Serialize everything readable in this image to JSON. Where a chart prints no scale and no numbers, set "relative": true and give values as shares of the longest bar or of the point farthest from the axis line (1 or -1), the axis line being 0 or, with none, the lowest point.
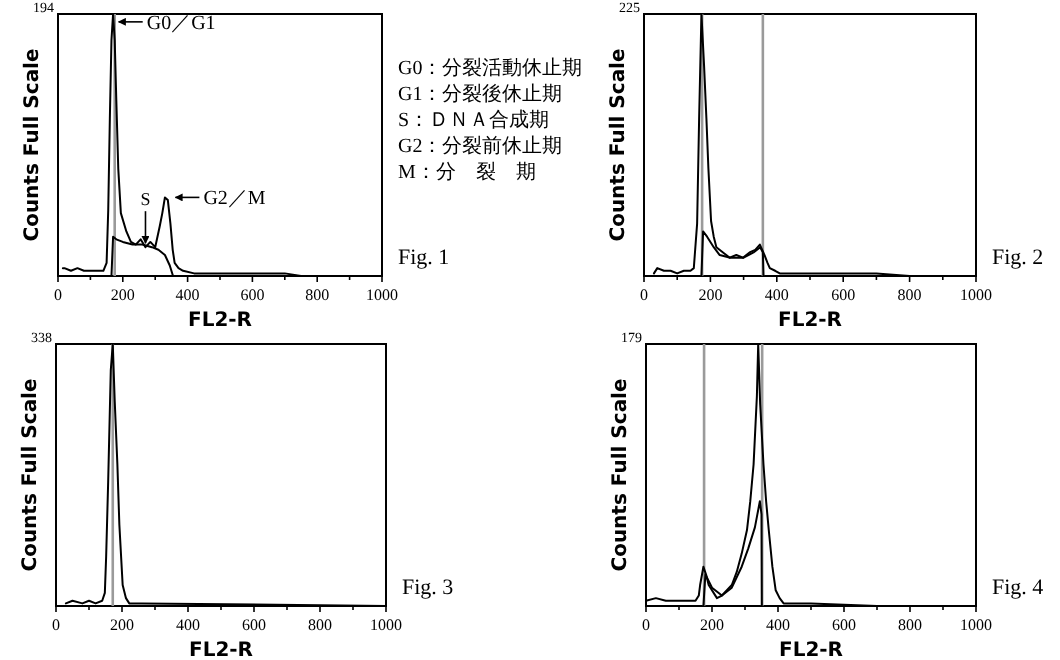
{
  "chart_data": [
    {
      "type": "line",
      "relative": true,
      "xlabel": "FL2-R",
      "ylabel": "Counts Full Scale",
      "xlim": [
        0,
        1000
      ],
      "xticks": [
        0,
        {
          "value": 100,
          "label": null
        },
        200,
        {
          "value": 300,
          "label": null
        },
        400,
        {
          "value": 500,
          "label": null
        },
        600,
        {
          "value": 700,
          "label": null
        },
        800,
        {
          "value": 900,
          "label": null
        },
        1000
      ],
      "series": [
        {
          "color": "#000000",
          "x": [
            15,
            20,
            40,
            60,
            80,
            100,
            120,
            140,
            150,
            155,
            160,
            165,
            170,
            175,
            180,
            186,
            194,
            211,
            225,
            240,
            255,
            270,
            285,
            300,
            314,
            322,
            330,
            339,
            347,
            354,
            360,
            372,
            386,
            420,
            500,
            600,
            700,
            750,
            800,
            900,
            1000
          ],
          "values": [
            0.03,
            0.03,
            0.02,
            0.03,
            0.02,
            0.02,
            0.02,
            0.02,
            0.05,
            0.25,
            0.6,
            0.9,
            1.0,
            0.9,
            0.67,
            0.41,
            0.24,
            0.17,
            0.13,
            0.12,
            0.14,
            0.11,
            0.13,
            0.11,
            0.19,
            0.24,
            0.3,
            0.29,
            0.2,
            0.1,
            0.05,
            0.03,
            0.02,
            0.01,
            0.01,
            0.01,
            0.01,
            0,
            0,
            0,
            0
          ]
        },
        {
          "color": "#000000",
          "x": [
            165,
            170,
            180,
            200,
            230,
            260,
            290,
            310,
            330,
            345,
            355
          ],
          "values": [
            0,
            0.15,
            0.14,
            0.13,
            0.12,
            0.12,
            0.11,
            0.1,
            0.08,
            0.04,
            0
          ]
        }
      ],
      "ref_lines": [
        {
          "axis": "x",
          "value": 175,
          "label": null,
          "color": "#9a9a9a"
        }
      ],
      "annotations": [
        "194",
        {
          "text": "G0／G1",
          "x": 175,
          "y": 0.97
        },
        {
          "text": "S",
          "x": 270,
          "y": 0.11
        },
        {
          "text": "G2／M",
          "x": 350,
          "y": 0.3
        },
        "G0：分裂活動休止期",
        "G1：分裂後休止期",
        "S：ＤＮＡ合成期",
        "G2：分裂前休止期",
        "M：分　裂　期",
        "Fig. 1"
      ]
    },
    {
      "type": "line",
      "relative": true,
      "xlabel": "FL2-R",
      "ylabel": "Counts Full Scale",
      "xlim": [
        0,
        1000
      ],
      "xticks": [
        0,
        {
          "value": 100,
          "label": null
        },
        200,
        {
          "value": 300,
          "label": null
        },
        400,
        {
          "value": 500,
          "label": null
        },
        600,
        {
          "value": 700,
          "label": null
        },
        800,
        {
          "value": 900,
          "label": null
        },
        1000
      ],
      "series": [
        {
          "color": "#000000",
          "x": [
            30,
            40,
            60,
            80,
            100,
            120,
            140,
            150,
            160,
            166,
            173,
            181,
            188,
            194,
            202,
            210,
            218,
            238,
            258,
            278,
            298,
            318,
            335,
            349,
            356,
            363,
            372,
            379,
            395,
            409,
            450,
            500,
            600,
            700,
            800,
            1000
          ],
          "values": [
            0.01,
            0.03,
            0.02,
            0.02,
            0.01,
            0.02,
            0.02,
            0.03,
            0.2,
            0.6,
            1.0,
            0.8,
            0.6,
            0.41,
            0.21,
            0.15,
            0.11,
            0.09,
            0.07,
            0.08,
            0.07,
            0.09,
            0.1,
            0.12,
            0.1,
            0.08,
            0.05,
            0.03,
            0.02,
            0.01,
            0.01,
            0.01,
            0.01,
            0.01,
            0,
            0
          ]
        },
        {
          "color": "#000000",
          "x": [
            173,
            178,
            190,
            210,
            228,
            260,
            300,
            330,
            350,
            358,
            360
          ],
          "values": [
            0,
            0.17,
            0.15,
            0.11,
            0.08,
            0.07,
            0.07,
            0.09,
            0.11,
            0.09,
            0
          ]
        }
      ],
      "ref_lines": [
        {
          "axis": "x",
          "value": 175,
          "label": null,
          "color": "#9a9a9a"
        },
        {
          "axis": "x",
          "value": 358,
          "label": null,
          "color": "#9a9a9a"
        }
      ],
      "annotations": [
        "225",
        "Fig. 2"
      ]
    },
    {
      "type": "line",
      "relative": true,
      "xlabel": "FL2-R",
      "ylabel": "Counts Full Scale",
      "xlim": [
        0,
        1000
      ],
      "xticks": [
        0,
        {
          "value": 100,
          "label": null
        },
        200,
        {
          "value": 300,
          "label": null
        },
        400,
        {
          "value": 500,
          "label": null
        },
        600,
        {
          "value": 700,
          "label": null
        },
        800,
        {
          "value": 900,
          "label": null
        },
        1000
      ],
      "series": [
        {
          "color": "#000000",
          "x": [
            30,
            50,
            80,
            100,
            120,
            140,
            148,
            152,
            158,
            166,
            172,
            178,
            186,
            192,
            202,
            212,
            222,
            260,
            1000
          ],
          "values": [
            0.01,
            0.02,
            0.01,
            0.02,
            0.01,
            0.02,
            0.05,
            0.19,
            0.47,
            0.9,
            1.0,
            0.78,
            0.54,
            0.31,
            0.08,
            0.03,
            0.01,
            0.01,
            0
          ]
        }
      ],
      "ref_lines": [
        {
          "axis": "x",
          "value": 172,
          "label": null,
          "color": "#9a9a9a"
        }
      ],
      "annotations": [
        "338",
        "Fig. 3"
      ]
    },
    {
      "type": "line",
      "relative": true,
      "xlabel": "FL2-R",
      "ylabel": "Counts Full Scale",
      "xlim": [
        0,
        1000
      ],
      "xticks": [
        0,
        {
          "value": 100,
          "label": null
        },
        200,
        {
          "value": 300,
          "label": null
        },
        400,
        {
          "value": 500,
          "label": null
        },
        600,
        {
          "value": 700,
          "label": null
        },
        800,
        {
          "value": 900,
          "label": null
        },
        1000
      ],
      "series": [
        {
          "color": "#000000",
          "x": [
            0,
            30,
            60,
            100,
            130,
            150,
            160,
            164,
            174,
            182,
            190,
            205,
            215,
            230,
            245,
            260,
            275,
            290,
            306,
            316,
            326,
            336,
            340,
            346,
            356,
            364,
            372,
            383,
            393,
            405,
            417,
            450,
            500,
            700,
            1000
          ],
          "values": [
            0.02,
            0.03,
            0.02,
            0.02,
            0.02,
            0.02,
            0.04,
            0.08,
            0.15,
            0.12,
            0.08,
            0.05,
            0.03,
            0.04,
            0.06,
            0.08,
            0.13,
            0.2,
            0.29,
            0.4,
            0.54,
            0.8,
            1.0,
            0.77,
            0.54,
            0.4,
            0.29,
            0.15,
            0.06,
            0.03,
            0.01,
            0.01,
            0.01,
            0,
            0
          ]
        },
        {
          "color": "#000000",
          "x": [
            174,
            180,
            200,
            230,
            260,
            290,
            310,
            330,
            345,
            350,
            351
          ],
          "values": [
            0,
            0.12,
            0.07,
            0.04,
            0.07,
            0.15,
            0.22,
            0.3,
            0.4,
            0.35,
            0
          ]
        }
      ],
      "ref_lines": [
        {
          "axis": "x",
          "value": 176,
          "label": null,
          "color": "#9a9a9a"
        },
        {
          "axis": "x",
          "value": 352,
          "label": null,
          "color": "#9a9a9a"
        }
      ],
      "annotations": [
        "179",
        "Fig. 4"
      ]
    }
  ]
}
